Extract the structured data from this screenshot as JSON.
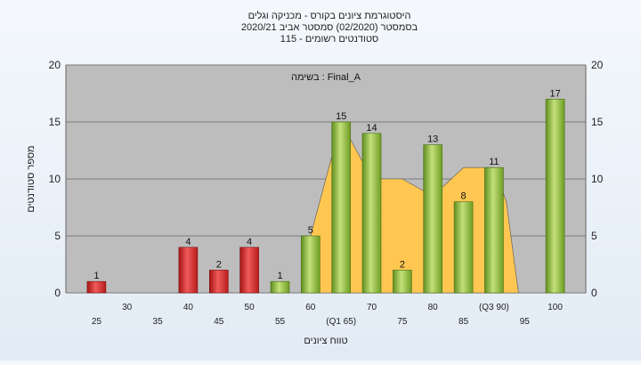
{
  "title_lines": [
    "היסטוגרמת ציונים בקורס - מכניקה וגלים",
    "בסמסטר  (02/2020)  סמסטר אביב 2020/21",
    "סטודנטים רשומים - 115"
  ],
  "colors": {
    "fail_bar": "#d42a2a",
    "pass_bar": "#8dbb3e",
    "area": "#ffc752",
    "plot_bg": "#bdbdbd",
    "grid": "#7a7a7a"
  },
  "chart_data": {
    "type": "bar",
    "annotation": "בשימה : Final_A",
    "xlabel": "טווח ציונים",
    "ylabel": "מספר סטודנטים",
    "ylim": [
      0,
      20
    ],
    "yticks": [
      0,
      5,
      10,
      15,
      20
    ],
    "pass_threshold": 55,
    "x_tick_labels": [
      {
        "x": 25,
        "label": "25"
      },
      {
        "x": 30,
        "label": "30"
      },
      {
        "x": 35,
        "label": "35"
      },
      {
        "x": 40,
        "label": "40"
      },
      {
        "x": 45,
        "label": "45"
      },
      {
        "x": 50,
        "label": "50"
      },
      {
        "x": 55,
        "label": "55"
      },
      {
        "x": 60,
        "label": "60"
      },
      {
        "x": 65,
        "label": "(Q1 65)"
      },
      {
        "x": 70,
        "label": "70"
      },
      {
        "x": 75,
        "label": "75"
      },
      {
        "x": 80,
        "label": "80"
      },
      {
        "x": 85,
        "label": "85"
      },
      {
        "x": 90,
        "label": "(Q3 90)"
      },
      {
        "x": 95,
        "label": "95"
      },
      {
        "x": 100,
        "label": "100"
      }
    ],
    "bars": [
      {
        "x": 25,
        "value": 1
      },
      {
        "x": 40,
        "value": 4
      },
      {
        "x": 45,
        "value": 2
      },
      {
        "x": 50,
        "value": 4
      },
      {
        "x": 55,
        "value": 1
      },
      {
        "x": 60,
        "value": 5
      },
      {
        "x": 65,
        "value": 15
      },
      {
        "x": 70,
        "value": 14
      },
      {
        "x": 75,
        "value": 2
      },
      {
        "x": 80,
        "value": 13
      },
      {
        "x": 85,
        "value": 8
      },
      {
        "x": 90,
        "value": 11
      },
      {
        "x": 100,
        "value": 17
      }
    ],
    "quartile_area": [
      {
        "x": 60,
        "y": 5
      },
      {
        "x": 65,
        "y": 15
      },
      {
        "x": 68,
        "y": 12
      },
      {
        "x": 70,
        "y": 10
      },
      {
        "x": 75,
        "y": 10
      },
      {
        "x": 80,
        "y": 8.5
      },
      {
        "x": 83,
        "y": 10
      },
      {
        "x": 85,
        "y": 11
      },
      {
        "x": 90,
        "y": 11
      },
      {
        "x": 92,
        "y": 8
      },
      {
        "x": 94,
        "y": 0
      }
    ]
  }
}
